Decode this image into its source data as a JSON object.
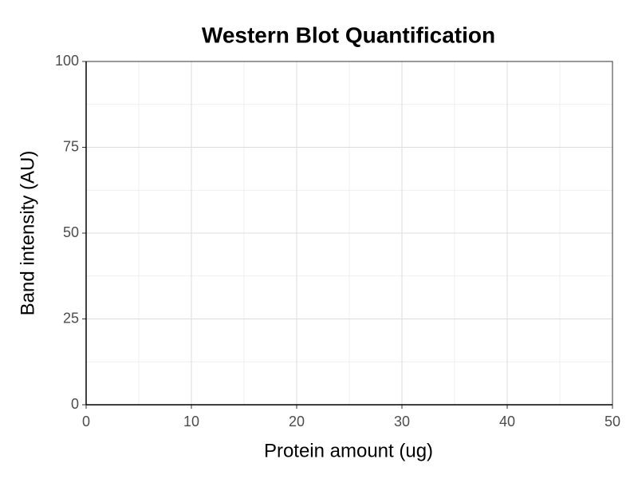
{
  "chart_data": {
    "type": "scatter",
    "title": "Western Blot Quantification",
    "x_label": "Protein amount (ug)",
    "y_label": "Band intensity (AU)",
    "xlim": [
      0,
      50
    ],
    "ylim": [
      0,
      100
    ],
    "xticks": [
      0,
      10,
      20,
      30,
      40,
      50
    ],
    "yticks": [
      0,
      25,
      50,
      75,
      100
    ],
    "grid": true
  }
}
